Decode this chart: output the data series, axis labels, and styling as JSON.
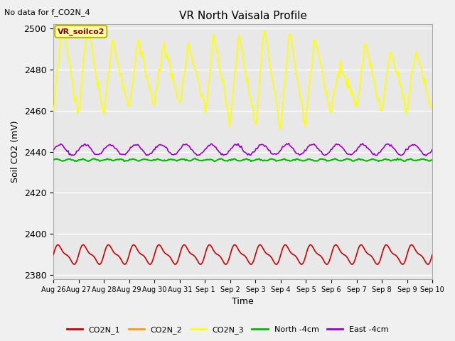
{
  "title": "VR North Vaisala Profile",
  "top_left_text": "No data for f_CO2N_4",
  "box_label": "VR_soilco2",
  "ylabel": "Soil CO2 (mV)",
  "xlabel": "Time",
  "ylim": [
    2378,
    2502
  ],
  "yticks": [
    2380,
    2400,
    2420,
    2440,
    2460,
    2480,
    2500
  ],
  "fig_bg_color": "#f0f0f0",
  "plot_bg_color": "#e8e8e8",
  "co2n1_color": "#cc0000",
  "co2n2_color": "#ff9900",
  "co2n3_color": "#ffff00",
  "north_color": "#00bb00",
  "east_color": "#9900cc",
  "xtick_labels": [
    "Aug 26",
    "Aug 27",
    "Aug 28",
    "Aug 29",
    "Aug 30",
    "Aug 31",
    "Sep 1",
    "Sep 2",
    "Sep 3",
    "Sep 4",
    "Sep 5",
    "Sep 6",
    "Sep 7",
    "Sep 8",
    "Sep 9",
    "Sep 10"
  ],
  "legend_labels": [
    "CO2N_1",
    "CO2N_2",
    "CO2N_3",
    "North -4cm",
    "East -4cm"
  ]
}
